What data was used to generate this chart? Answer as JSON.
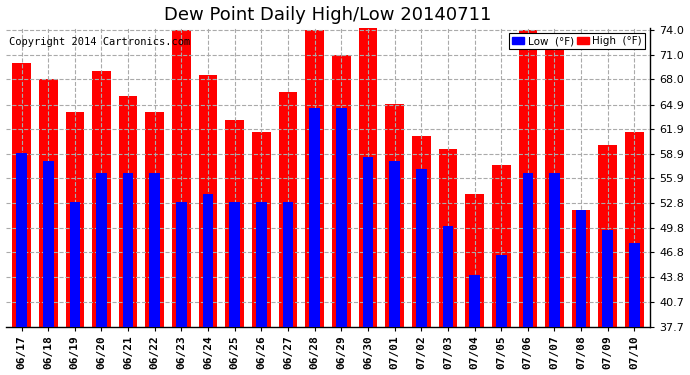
{
  "title": "Dew Point Daily High/Low 20140711",
  "copyright": "Copyright 2014 Cartronics.com",
  "dates": [
    "06/17",
    "06/18",
    "06/19",
    "06/20",
    "06/21",
    "06/22",
    "06/23",
    "06/24",
    "06/25",
    "06/26",
    "06/27",
    "06/28",
    "06/29",
    "06/30",
    "07/01",
    "07/02",
    "07/03",
    "07/04",
    "07/05",
    "07/06",
    "07/07",
    "07/08",
    "07/09",
    "07/10"
  ],
  "high_values": [
    70.0,
    68.0,
    64.0,
    69.0,
    66.0,
    64.0,
    74.0,
    68.5,
    63.0,
    61.5,
    66.5,
    74.0,
    71.0,
    75.0,
    65.0,
    61.0,
    59.5,
    54.0,
    57.5,
    74.0,
    72.0,
    52.0,
    60.0,
    61.5
  ],
  "low_values": [
    59.0,
    58.0,
    53.0,
    56.5,
    56.5,
    56.5,
    53.0,
    54.0,
    53.0,
    53.0,
    53.0,
    64.5,
    64.5,
    58.5,
    58.0,
    57.0,
    50.0,
    44.0,
    46.5,
    56.5,
    56.5,
    52.0,
    49.5,
    48.0
  ],
  "ylim_min": 37.7,
  "ylim_max": 74.0,
  "yticks": [
    37.7,
    40.7,
    43.8,
    46.8,
    49.8,
    52.8,
    55.9,
    58.9,
    61.9,
    64.9,
    68.0,
    71.0,
    74.0
  ],
  "high_bar_width": 0.7,
  "low_bar_width": 0.4,
  "high_color": "#ff0000",
  "low_color": "#0000ff",
  "background_color": "#ffffff",
  "grid_color": "#aaaaaa",
  "title_fontsize": 13,
  "axis_fontsize": 8,
  "copyright_fontsize": 7.5
}
